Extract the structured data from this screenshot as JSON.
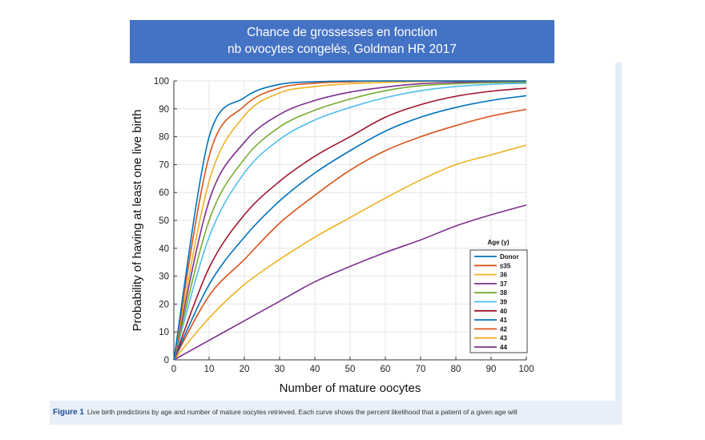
{
  "banner": {
    "line1": "Chance de grossesses en fonction",
    "line2": "nb ovocytes congelés, Goldman HR 2017"
  },
  "caption": {
    "label": "Figure 1",
    "text": "Live birth predictions by age and number of mature oocytes retrieved. Each curve shows the percent likelihood that a patient of a given age will"
  },
  "chart_data": {
    "type": "line",
    "xlabel": "Number of mature oocytes",
    "ylabel": "Probability of having at least one live birth",
    "xlim": [
      0,
      100
    ],
    "ylim": [
      0,
      100
    ],
    "xticks": [
      0,
      10,
      20,
      30,
      40,
      50,
      60,
      70,
      80,
      90,
      100
    ],
    "yticks": [
      0,
      10,
      20,
      30,
      40,
      50,
      60,
      70,
      80,
      90,
      100
    ],
    "grid": true,
    "legend_title": "Age (y)",
    "legend_position": "bottom-right",
    "x": [
      0,
      10,
      20,
      30,
      40,
      50,
      60,
      70,
      80,
      90,
      100
    ],
    "series": [
      {
        "name": "Donor",
        "color": "#0072BD",
        "values": [
          0,
          80,
          94,
          98.8,
          99.7,
          100,
          100,
          100,
          100,
          100,
          100
        ]
      },
      {
        "name": "≤35",
        "color": "#D95319",
        "values": [
          0,
          73,
          91,
          97.5,
          99.2,
          99.7,
          100,
          100,
          100,
          100,
          100
        ]
      },
      {
        "name": "36",
        "color": "#EDB120",
        "values": [
          0,
          64,
          87.5,
          95.7,
          98,
          99,
          99.5,
          99.8,
          100,
          100,
          100
        ]
      },
      {
        "name": "37",
        "color": "#7E2F8E",
        "values": [
          0,
          57,
          78,
          88,
          93,
          96,
          97.8,
          99,
          99.5,
          99.8,
          99.9
        ]
      },
      {
        "name": "38",
        "color": "#77AC30",
        "values": [
          0,
          50,
          72,
          83.5,
          89.5,
          93.5,
          96.5,
          98.3,
          99,
          99.4,
          99.6
        ]
      },
      {
        "name": "39",
        "color": "#4DBEEE",
        "values": [
          0,
          44,
          67,
          79,
          86,
          90.5,
          94,
          96.5,
          98,
          98.8,
          99.2
        ]
      },
      {
        "name": "40",
        "color": "#A2142F",
        "values": [
          0,
          33,
          52,
          64,
          73,
          80,
          87,
          91.5,
          94.5,
          96.3,
          97.4
        ]
      },
      {
        "name": "41",
        "color": "#0072BD",
        "values": [
          0,
          27,
          44,
          57,
          67,
          75,
          82,
          87,
          90.5,
          93,
          94.7
        ]
      },
      {
        "name": "42",
        "color": "#D95319",
        "values": [
          0,
          23,
          36,
          49,
          59,
          68,
          75,
          80,
          84,
          87.4,
          89.8
        ]
      },
      {
        "name": "43",
        "color": "#EDB120",
        "values": [
          0,
          15,
          27,
          36,
          44,
          51,
          58,
          64.5,
          70,
          73.5,
          77
        ]
      },
      {
        "name": "44",
        "color": "#7E2F8E",
        "values": [
          0,
          7,
          14,
          21,
          28,
          33.5,
          38.5,
          43,
          48,
          52,
          55.5
        ]
      }
    ]
  }
}
